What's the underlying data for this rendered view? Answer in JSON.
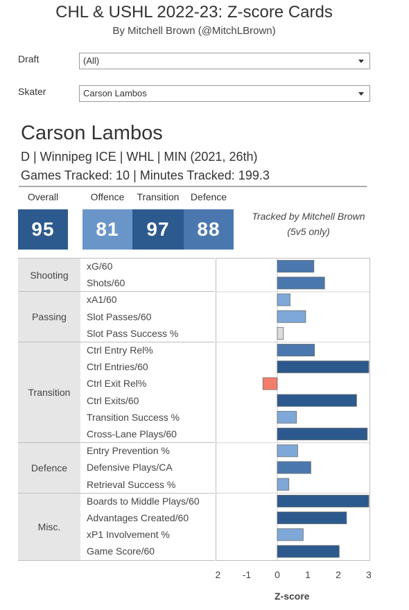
{
  "header": {
    "title": "CHL & USHL 2022-23: Z-score Cards",
    "subtitle": "By Mitchell Brown (@MitchLBrown)"
  },
  "filters": {
    "draft_label": "Draft",
    "draft_value": "(All)",
    "skater_label": "Skater",
    "skater_value": "Carson Lambos"
  },
  "player": {
    "name": "Carson Lambos",
    "info_line": "D | Winnipeg ICE | WHL | MIN (2021, 26th)",
    "tracked_line": "Games Tracked: 10 | Minutes Tracked: 199.3"
  },
  "scores": {
    "overall_label": "Overall",
    "overall_value": "95",
    "offence_label": "Offence",
    "offence_value": "81",
    "transition_label": "Transition",
    "transition_value": "97",
    "defence_label": "Defence",
    "defence_value": "88",
    "note_line1": "Tracked by Mitchell Brown",
    "note_line2": "(5v5 only)"
  },
  "colors": {
    "bar_positive_dark": "#2c5a8e",
    "bar_positive_mid": "#4a78ae",
    "bar_positive_light": "#7ea8d8",
    "bar_neutral": "#dcdcdc",
    "bar_negative": "#f47c6a",
    "tile_overall": "#2c5a8e",
    "tile_offence": "#6a95c8",
    "tile_transition": "#2c5a8e",
    "tile_defence": "#4a78ae"
  },
  "chart_data": {
    "type": "bar",
    "orientation": "horizontal",
    "xlabel": "Z-score",
    "xlim": [
      -2,
      3
    ],
    "xticks": [
      -2,
      -1,
      0,
      1,
      2,
      3
    ],
    "groups": [
      {
        "name": "Shooting",
        "metrics": [
          {
            "label": "xG/60",
            "value": 1.2
          },
          {
            "label": "Shots/60",
            "value": 1.55
          }
        ]
      },
      {
        "name": "Passing",
        "metrics": [
          {
            "label": "xA1/60",
            "value": 0.42
          },
          {
            "label": "Slot Passes/60",
            "value": 0.93
          },
          {
            "label": "Slot Pass Success %",
            "value": 0.2
          }
        ]
      },
      {
        "name": "Transition",
        "metrics": [
          {
            "label": "Ctrl Entry Rel%",
            "value": 1.22
          },
          {
            "label": "Ctrl Entries/60",
            "value": 3.0
          },
          {
            "label": "Ctrl Exit Rel%",
            "value": -0.47
          },
          {
            "label": "Ctrl Exits/60",
            "value": 2.6
          },
          {
            "label": "Transition Success %",
            "value": 0.63
          },
          {
            "label": "Cross-Lane Plays/60",
            "value": 2.95
          }
        ]
      },
      {
        "name": "Defence",
        "metrics": [
          {
            "label": "Entry Prevention %",
            "value": 0.67
          },
          {
            "label": "Defensive Plays/CA",
            "value": 1.1
          },
          {
            "label": "Retrieval Success %",
            "value": 0.38
          }
        ]
      },
      {
        "name": "Misc.",
        "metrics": [
          {
            "label": "Boards to Middle Plays/60",
            "value": 3.0
          },
          {
            "label": "Advantages Created/60",
            "value": 2.27
          },
          {
            "label": "xP1 Involvement %",
            "value": 0.85
          },
          {
            "label": "Game Score/60",
            "value": 2.03
          }
        ]
      }
    ]
  }
}
